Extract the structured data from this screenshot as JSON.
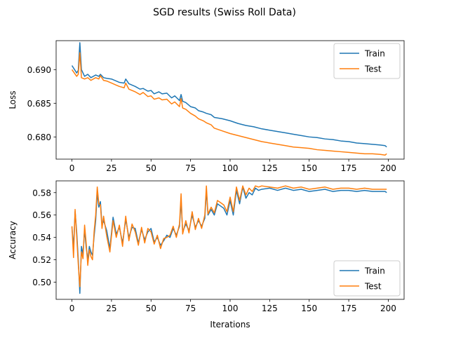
{
  "figure": {
    "title": "SGD results (Swiss Roll Data)"
  },
  "chart_data": [
    {
      "type": "line",
      "title": "",
      "xlabel": "",
      "ylabel": "Loss",
      "xlim": [
        -10,
        210
      ],
      "ylim": [
        0.6767,
        0.6943
      ],
      "xticks": [
        0,
        25,
        50,
        75,
        100,
        125,
        150,
        175,
        200
      ],
      "yticks": [
        0.68,
        0.685,
        0.69
      ],
      "ytick_labels": [
        "0.680",
        "0.685",
        "0.690"
      ],
      "grid": false,
      "legend_position": "upper right",
      "series": [
        {
          "name": "Train",
          "color": "#1f77b4",
          "x": [
            0,
            3,
            4,
            5,
            6,
            8,
            10,
            12,
            15,
            17,
            18,
            20,
            22,
            25,
            28,
            30,
            33,
            34,
            36,
            40,
            43,
            45,
            48,
            50,
            52,
            55,
            57,
            60,
            63,
            65,
            68,
            69,
            70,
            72,
            75,
            78,
            80,
            83,
            85,
            88,
            90,
            95,
            100,
            105,
            110,
            115,
            120,
            125,
            130,
            135,
            140,
            145,
            150,
            155,
            160,
            165,
            170,
            175,
            180,
            185,
            190,
            195,
            198,
            199
          ],
          "values": [
            0.6906,
            0.6895,
            0.6899,
            0.694,
            0.69,
            0.689,
            0.6893,
            0.6888,
            0.6892,
            0.689,
            0.6893,
            0.6888,
            0.6887,
            0.6886,
            0.6883,
            0.6881,
            0.688,
            0.6886,
            0.6879,
            0.6875,
            0.6871,
            0.6872,
            0.6868,
            0.6869,
            0.6864,
            0.6867,
            0.6864,
            0.6865,
            0.6858,
            0.6861,
            0.6854,
            0.6863,
            0.6853,
            0.6851,
            0.6845,
            0.6843,
            0.6839,
            0.6837,
            0.6835,
            0.6833,
            0.6829,
            0.6827,
            0.6824,
            0.682,
            0.6817,
            0.6815,
            0.6812,
            0.681,
            0.6808,
            0.6806,
            0.6804,
            0.6802,
            0.68,
            0.6799,
            0.6797,
            0.6796,
            0.6794,
            0.6793,
            0.6791,
            0.679,
            0.6789,
            0.6788,
            0.6787,
            0.6785
          ]
        },
        {
          "name": "Test",
          "color": "#ff7f0e",
          "x": [
            0,
            3,
            4,
            5,
            6,
            8,
            10,
            12,
            15,
            17,
            18,
            20,
            22,
            25,
            28,
            30,
            33,
            34,
            36,
            40,
            43,
            45,
            48,
            50,
            52,
            55,
            57,
            60,
            63,
            65,
            68,
            69,
            70,
            72,
            75,
            78,
            80,
            83,
            85,
            88,
            90,
            95,
            100,
            105,
            110,
            115,
            120,
            125,
            130,
            135,
            140,
            145,
            150,
            155,
            160,
            165,
            170,
            175,
            180,
            185,
            190,
            195,
            198,
            199
          ],
          "values": [
            0.69,
            0.689,
            0.6893,
            0.6925,
            0.6888,
            0.6886,
            0.6888,
            0.6884,
            0.6888,
            0.6886,
            0.6891,
            0.6884,
            0.6883,
            0.688,
            0.6877,
            0.6875,
            0.6873,
            0.688,
            0.6871,
            0.6867,
            0.6863,
            0.6866,
            0.686,
            0.6861,
            0.6856,
            0.6858,
            0.6855,
            0.6856,
            0.6849,
            0.6852,
            0.6845,
            0.6857,
            0.6843,
            0.6841,
            0.6835,
            0.6831,
            0.6827,
            0.6824,
            0.6821,
            0.6818,
            0.6813,
            0.6809,
            0.6805,
            0.6802,
            0.6799,
            0.6796,
            0.6793,
            0.6791,
            0.6789,
            0.6787,
            0.6785,
            0.6784,
            0.6783,
            0.6781,
            0.678,
            0.6779,
            0.6778,
            0.6777,
            0.6776,
            0.6775,
            0.6775,
            0.6774,
            0.6773,
            0.6775
          ]
        }
      ]
    },
    {
      "type": "line",
      "title": "",
      "xlabel": "Iterations",
      "ylabel": "Accuracy",
      "xlim": [
        -10,
        210
      ],
      "ylim": [
        0.4847,
        0.5905
      ],
      "xticks": [
        0,
        25,
        50,
        75,
        100,
        125,
        150,
        175,
        200
      ],
      "yticks": [
        0.5,
        0.52,
        0.54,
        0.56,
        0.58
      ],
      "ytick_labels": [
        "0.50",
        "0.52",
        "0.54",
        "0.56",
        "0.58"
      ],
      "grid": false,
      "legend_position": "lower right",
      "series": [
        {
          "name": "Train",
          "color": "#1f77b4",
          "x": [
            0,
            1,
            2,
            3,
            4,
            5,
            6,
            7,
            8,
            9,
            10,
            11,
            12,
            13,
            14,
            15,
            16,
            17,
            18,
            19,
            20,
            22,
            24,
            26,
            28,
            30,
            32,
            34,
            36,
            38,
            40,
            42,
            44,
            46,
            48,
            50,
            52,
            54,
            56,
            58,
            60,
            62,
            64,
            66,
            68,
            69,
            70,
            72,
            74,
            76,
            78,
            80,
            82,
            84,
            85,
            86,
            88,
            90,
            92,
            94,
            96,
            98,
            100,
            102,
            104,
            106,
            108,
            110,
            112,
            114,
            116,
            118,
            120,
            125,
            130,
            135,
            140,
            145,
            150,
            155,
            160,
            165,
            170,
            175,
            180,
            185,
            190,
            195,
            198,
            199
          ],
          "values": [
            0.549,
            0.531,
            0.563,
            0.545,
            0.52,
            0.49,
            0.532,
            0.525,
            0.547,
            0.531,
            0.52,
            0.532,
            0.527,
            0.524,
            0.541,
            0.555,
            0.58,
            0.567,
            0.572,
            0.551,
            0.555,
            0.546,
            0.53,
            0.558,
            0.543,
            0.549,
            0.535,
            0.556,
            0.54,
            0.549,
            0.548,
            0.535,
            0.547,
            0.538,
            0.545,
            0.548,
            0.536,
            0.54,
            0.533,
            0.537,
            0.542,
            0.54,
            0.548,
            0.542,
            0.55,
            0.573,
            0.545,
            0.552,
            0.546,
            0.56,
            0.549,
            0.555,
            0.55,
            0.557,
            0.582,
            0.56,
            0.565,
            0.56,
            0.57,
            0.568,
            0.566,
            0.56,
            0.573,
            0.56,
            0.582,
            0.57,
            0.585,
            0.575,
            0.58,
            0.578,
            0.584,
            0.582,
            0.583,
            0.584,
            0.582,
            0.584,
            0.582,
            0.583,
            0.581,
            0.582,
            0.583,
            0.581,
            0.582,
            0.582,
            0.581,
            0.582,
            0.581,
            0.581,
            0.581,
            0.58
          ]
        },
        {
          "name": "Test",
          "color": "#ff7f0e",
          "x": [
            0,
            1,
            2,
            3,
            4,
            5,
            6,
            7,
            8,
            9,
            10,
            11,
            12,
            13,
            14,
            15,
            16,
            17,
            18,
            19,
            20,
            22,
            24,
            26,
            28,
            30,
            32,
            34,
            36,
            38,
            40,
            42,
            44,
            46,
            48,
            50,
            52,
            54,
            56,
            58,
            60,
            62,
            64,
            66,
            68,
            69,
            70,
            72,
            74,
            76,
            78,
            80,
            82,
            84,
            85,
            86,
            88,
            90,
            92,
            94,
            96,
            98,
            100,
            102,
            104,
            106,
            108,
            110,
            112,
            114,
            116,
            118,
            120,
            125,
            130,
            135,
            140,
            145,
            150,
            155,
            160,
            165,
            170,
            175,
            180,
            185,
            190,
            195,
            198,
            199
          ],
          "values": [
            0.55,
            0.522,
            0.565,
            0.541,
            0.516,
            0.496,
            0.527,
            0.521,
            0.551,
            0.535,
            0.515,
            0.529,
            0.523,
            0.52,
            0.545,
            0.56,
            0.585,
            0.57,
            0.569,
            0.548,
            0.559,
            0.541,
            0.527,
            0.555,
            0.54,
            0.551,
            0.532,
            0.559,
            0.537,
            0.552,
            0.545,
            0.533,
            0.549,
            0.535,
            0.548,
            0.545,
            0.534,
            0.542,
            0.53,
            0.539,
            0.54,
            0.542,
            0.55,
            0.54,
            0.552,
            0.579,
            0.543,
            0.555,
            0.544,
            0.563,
            0.547,
            0.557,
            0.548,
            0.56,
            0.586,
            0.561,
            0.567,
            0.562,
            0.573,
            0.571,
            0.569,
            0.563,
            0.576,
            0.563,
            0.585,
            0.573,
            0.586,
            0.578,
            0.584,
            0.581,
            0.586,
            0.585,
            0.586,
            0.585,
            0.584,
            0.586,
            0.584,
            0.585,
            0.583,
            0.584,
            0.585,
            0.583,
            0.584,
            0.584,
            0.583,
            0.584,
            0.583,
            0.583,
            0.583,
            0.583
          ]
        }
      ]
    }
  ]
}
